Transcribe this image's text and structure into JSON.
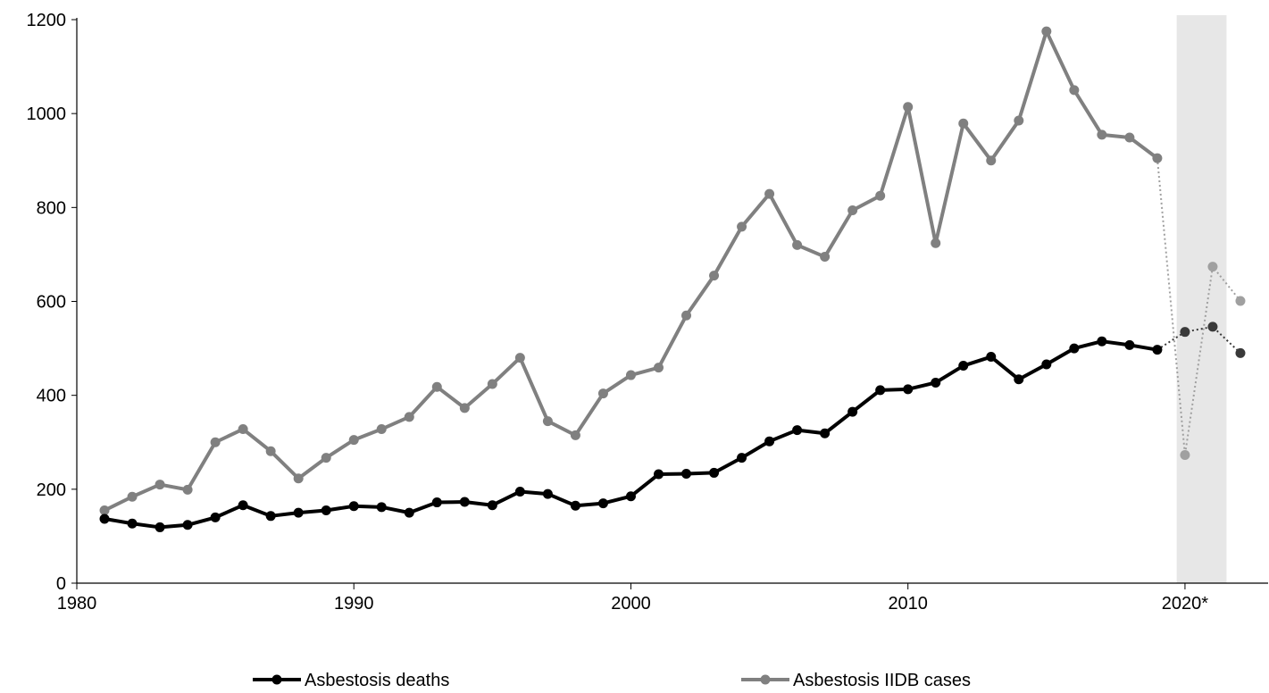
{
  "chart_data": {
    "type": "line",
    "title": "",
    "xlabel": "",
    "ylabel": "",
    "xlim": [
      1980,
      2023
    ],
    "ylim": [
      0,
      1200
    ],
    "yticks": [
      0,
      200,
      400,
      600,
      800,
      1000,
      1200
    ],
    "xticks": [
      {
        "value": 1980,
        "label": "1980"
      },
      {
        "value": 1990,
        "label": "1990"
      },
      {
        "value": 2000,
        "label": "2000"
      },
      {
        "value": 2010,
        "label": "2010"
      },
      {
        "value": 2020,
        "label": "2020*"
      }
    ],
    "shaded_region": {
      "x": [
        2019.7,
        2021.5
      ],
      "color": "#e7e7e7"
    },
    "grid": false,
    "legend_position": "bottom",
    "series": [
      {
        "name": "Asbestosis deaths",
        "color": "#000000",
        "projected_color": "#3a3a3a",
        "x": [
          1981,
          1982,
          1983,
          1984,
          1985,
          1986,
          1987,
          1988,
          1989,
          1990,
          1991,
          1992,
          1993,
          1994,
          1995,
          1996,
          1997,
          1998,
          1999,
          2000,
          2001,
          2002,
          2003,
          2004,
          2005,
          2006,
          2007,
          2008,
          2009,
          2010,
          2011,
          2012,
          2013,
          2014,
          2015,
          2016,
          2017,
          2018,
          2019
        ],
        "values": [
          137,
          127,
          119,
          124,
          140,
          166,
          143,
          150,
          155,
          164,
          162,
          150,
          172,
          173,
          166,
          195,
          190,
          165,
          170,
          185,
          232,
          233,
          235,
          267,
          302,
          326,
          319,
          365,
          411,
          413,
          427,
          463,
          482,
          434,
          466,
          500,
          515,
          507,
          497
        ],
        "projected_x": [
          2020,
          2021,
          2022
        ],
        "projected_values": [
          535,
          546,
          490
        ]
      },
      {
        "name": "Asbestosis IIDB cases",
        "color": "#808080",
        "projected_color": "#a0a0a0",
        "x": [
          1981,
          1982,
          1983,
          1984,
          1985,
          1986,
          1987,
          1988,
          1989,
          1990,
          1991,
          1992,
          1993,
          1994,
          1995,
          1996,
          1997,
          1998,
          1999,
          2000,
          2001,
          2002,
          2003,
          2004,
          2005,
          2006,
          2007,
          2008,
          2009,
          2010,
          2011,
          2012,
          2013,
          2014,
          2015,
          2016,
          2017,
          2018,
          2019
        ],
        "values": [
          155,
          184,
          210,
          199,
          300,
          328,
          281,
          223,
          267,
          305,
          328,
          354,
          418,
          373,
          424,
          480,
          345,
          315,
          404,
          443,
          459,
          570,
          655,
          759,
          829,
          720,
          695,
          794,
          825,
          1014,
          724,
          979,
          900,
          985,
          1175,
          1050,
          955,
          949,
          905
        ],
        "projected_x": [
          2020,
          2021,
          2022
        ],
        "projected_values": [
          273,
          674,
          601
        ]
      }
    ]
  }
}
